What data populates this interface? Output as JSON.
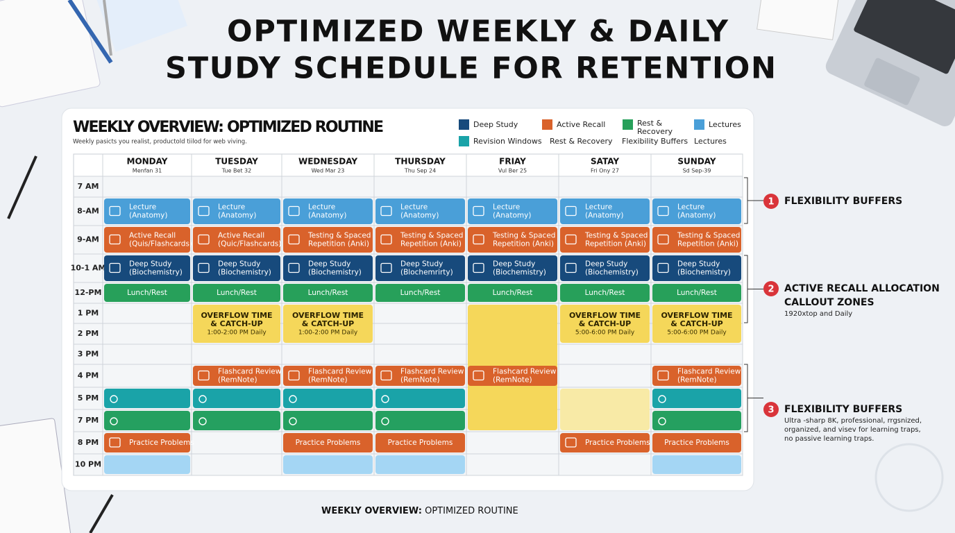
{
  "title": {
    "line1": "OPTIMIZED WEEKLY & DAILY",
    "line2": "STUDY SCHEDULE FOR RETENTION"
  },
  "card": {
    "heading": "WEEKLY OVERVIEW: OPTIMIZED ROUTINE",
    "subheading": "Weekly pasicts you realist, productold tiilod for web viving."
  },
  "legend": {
    "row1": [
      "Deep Study",
      "Active Recall",
      "Rest &",
      "Lectures"
    ],
    "row1_extra": "Recovery",
    "row2": [
      "Revision Windows",
      "Rest & Recovery",
      "Flexibility Buffers",
      "Lectures"
    ]
  },
  "times": [
    "7 AM",
    "8-AM",
    "9-AM",
    "10-1 AM",
    "12-PM",
    "1 PM",
    "2 PM",
    "3 PM",
    "4 PM",
    "5 PM",
    "7 PM",
    "8 PM",
    "10 PM"
  ],
  "days": [
    {
      "name": "MONDAY",
      "date": "Menfan 31",
      "events": [
        {
          "lines": [
            "Lecture",
            "(Anatomy)"
          ]
        },
        {
          "lines": [
            "Active Recall",
            "(Quis/Flashcards)"
          ]
        },
        {
          "lines": [
            "Deep Study",
            "(Biochemistry)"
          ]
        },
        {
          "lines": [
            "Lunch/Rest"
          ]
        },
        {
          "lines": [
            "Practice Problems"
          ]
        }
      ]
    },
    {
      "name": "TUESDAY",
      "date": "Tue Bet 32",
      "events": [
        {
          "lines": [
            "Lecture",
            "(Anatomy)"
          ]
        },
        {
          "lines": [
            "Active Recall",
            "(Quic/Flashcards)"
          ]
        },
        {
          "lines": [
            "Deep Study",
            "(Biochemistry)"
          ]
        },
        {
          "lines": [
            "Lunch/Rest"
          ]
        },
        {
          "lines": [
            "OVERFLOW TIME",
            "& CATCH-UP",
            "1:00-2:00 PM Daily"
          ]
        },
        {
          "lines": [
            "Flashcard Review",
            "(RemNote)"
          ]
        }
      ]
    },
    {
      "name": "WEDNESDAY",
      "date": "Wed Mar 23",
      "events": [
        {
          "lines": [
            "Lecture",
            "(Anatomy)"
          ]
        },
        {
          "lines": [
            "Testing & Spaced",
            "Repetition (Anki)"
          ]
        },
        {
          "lines": [
            "Deep Study",
            "(Biochemistry)"
          ]
        },
        {
          "lines": [
            "Lunch/Rest"
          ]
        },
        {
          "lines": [
            "OVERFLOW TIME",
            "& CATCH-UP",
            "1:00-2:00 PM Daily"
          ]
        },
        {
          "lines": [
            "Flashcard Review",
            "(RemNote)"
          ]
        },
        {
          "lines": [
            "Practice Problems"
          ]
        }
      ]
    },
    {
      "name": "THURSDAY",
      "date": "Thu Sep 24",
      "events": [
        {
          "lines": [
            "Lecture",
            "(Anatomy)"
          ]
        },
        {
          "lines": [
            "Testing & Spaced",
            "Repetition (Anki)"
          ]
        },
        {
          "lines": [
            "Deep Study",
            "(Blochemrirty)"
          ]
        },
        {
          "lines": [
            "Lunch/Rest"
          ]
        },
        {
          "lines": [
            "Flashcard Review",
            "(RemNote)"
          ]
        },
        {
          "lines": [
            "Practice Problems"
          ]
        }
      ]
    },
    {
      "name": "FRIAY",
      "date": "Vul Ber 25",
      "events": [
        {
          "lines": [
            "Lecture",
            "(Anatomy)"
          ]
        },
        {
          "lines": [
            "Testing & Spaced",
            "Repetition (Anki)"
          ]
        },
        {
          "lines": [
            "Deep Study",
            "(Biochemistry)"
          ]
        },
        {
          "lines": [
            "Lunch/Rest"
          ]
        },
        {
          "lines": [
            "Flashcard Review",
            "(RemNote)"
          ]
        }
      ]
    },
    {
      "name": "SATAY",
      "date": "Fri Ony 27",
      "events": [
        {
          "lines": [
            "Lecture",
            "(Anatomy)"
          ]
        },
        {
          "lines": [
            "Testing & Spaced",
            "Repetition (Anki)"
          ]
        },
        {
          "lines": [
            "Deep Study",
            "(Biochemistry)"
          ]
        },
        {
          "lines": [
            "Lunch/Rest"
          ]
        },
        {
          "lines": [
            "OVERFLOW TIME",
            "& CATCH-UP",
            "5:00-6:00 PM Daily"
          ]
        },
        {
          "lines": [
            "Practice Problems"
          ]
        }
      ]
    },
    {
      "name": "SUNDAY",
      "date": "Sd Sep-39",
      "events": [
        {
          "lines": [
            "Lecture",
            "(Anatomy)"
          ]
        },
        {
          "lines": [
            "Testing & Spaced",
            "Repetition (Anki)"
          ]
        },
        {
          "lines": [
            "Deep Study",
            "(Biochemistry)"
          ]
        },
        {
          "lines": [
            "Lunch/Rest"
          ]
        },
        {
          "lines": [
            "OVERFLOW TIME",
            "& CATCH-UP",
            "5:00-6:00 PM Daily"
          ]
        },
        {
          "lines": [
            "Flashcard Review",
            "(RemNote)"
          ]
        },
        {
          "lines": [
            "Practice Problems"
          ]
        }
      ]
    }
  ],
  "callouts": [
    {
      "number": 1,
      "title": [
        "FLEXIBILITY BUFFERS"
      ],
      "text": []
    },
    {
      "number": 2,
      "title": [
        "ACTIVE RECALL ALLOCATION",
        "CALLOUT ZONES"
      ],
      "text": [
        "1920xtop and Daily"
      ]
    },
    {
      "number": 3,
      "title": [
        "FLEXIBILITY BUFFERS"
      ],
      "text": [
        "Ultra -sharp 8K, professional, rrgsnized,",
        "organized, and visev for learning traps,",
        "no passive learning traps."
      ]
    }
  ],
  "caption": {
    "bold": "WEEKLY OVERVIEW:",
    "rest": "OPTIMIZED ROUTINE"
  }
}
